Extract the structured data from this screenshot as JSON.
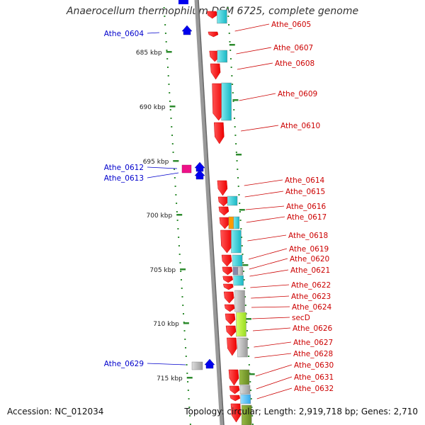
{
  "title": "Anaerocellum thermophilum DSM 6725, complete genome",
  "footer": {
    "accession": "Accession: NC_012034",
    "summary": "Topology: circular; Length: 2,919,718 bp; Genes: 2,710"
  },
  "colors": {
    "cds_forward": "#ff1a1a",
    "left_label": "#0000cc",
    "right_label": "#cc0000",
    "backbone": "#888888",
    "dots": "#2e8b2e"
  },
  "ticks": [
    "685 kbp",
    "690 kbp",
    "695 kbp",
    "700 kbp",
    "705 kbp",
    "710 kbp",
    "715 kbp"
  ],
  "left_labels": [
    "Athe_0604",
    "Athe_0612",
    "Athe_0613",
    "Athe_0629"
  ],
  "right_labels": [
    "Athe_0605",
    "Athe_0607",
    "Athe_0608",
    "Athe_0609",
    "Athe_0610",
    "Athe_0614",
    "Athe_0615",
    "Athe_0616",
    "Athe_0617",
    "Athe_0618",
    "Athe_0619",
    "Athe_0620",
    "Athe_0621",
    "Athe_0622",
    "Athe_0623",
    "Athe_0624",
    "secD",
    "Athe_0626",
    "Athe_0627",
    "Athe_0628",
    "Athe_0630",
    "Athe_0631",
    "Athe_0632"
  ]
}
